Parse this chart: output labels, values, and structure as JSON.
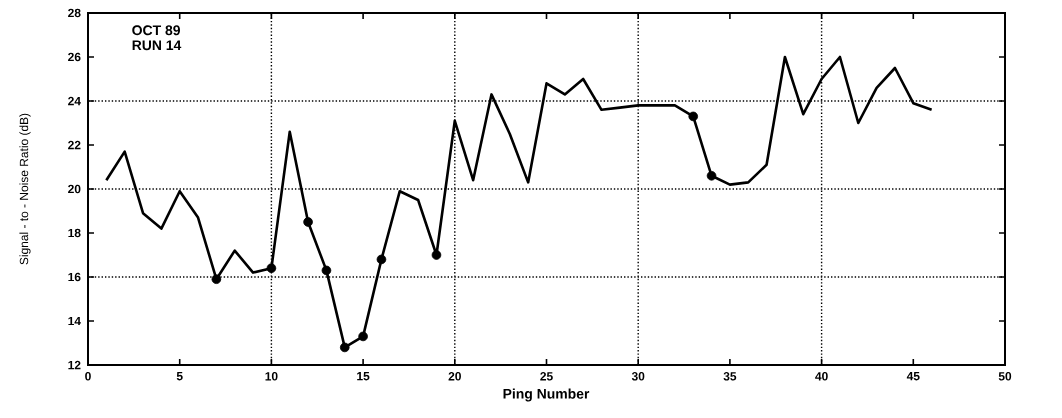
{
  "chart_data": {
    "type": "line",
    "xlabel": "Ping Number",
    "ylabel": "Signal - to - Noise Ratio (dB)",
    "annotations": [
      "OCT  89",
      "RUN  14"
    ],
    "xlim": [
      0,
      50
    ],
    "ylim": [
      12,
      28
    ],
    "xticks": [
      0,
      5,
      10,
      15,
      20,
      25,
      30,
      35,
      40,
      45,
      50
    ],
    "yticks": [
      12,
      14,
      16,
      18,
      20,
      22,
      24,
      26,
      28
    ],
    "line_style": "solid",
    "marker": "none",
    "series": [
      {
        "color": "#000000",
        "x": [
          1,
          2,
          3,
          4,
          5,
          6,
          7,
          8,
          9,
          10,
          11,
          12,
          13,
          14,
          15,
          16,
          17,
          18,
          19,
          20,
          21,
          22,
          23,
          24,
          25,
          26,
          27,
          28,
          29,
          30,
          31,
          32,
          33,
          34,
          35,
          36,
          37,
          38,
          39,
          40,
          41,
          42,
          43,
          44,
          45,
          46
        ],
        "values": [
          20.4,
          21.7,
          18.9,
          18.2,
          19.9,
          18.7,
          15.9,
          17.2,
          16.2,
          16.4,
          22.6,
          18.5,
          16.3,
          12.8,
          13.3,
          16.8,
          19.9,
          19.5,
          17.0,
          23.1,
          20.4,
          24.3,
          22.5,
          20.3,
          24.8,
          24.3,
          25.0,
          23.6,
          23.7,
          23.8,
          23.8,
          23.8,
          23.3,
          20.6,
          20.2,
          20.3,
          21.1,
          26.0,
          23.4,
          25.0,
          26.0,
          23.0,
          24.6,
          25.5,
          23.9,
          23.6
        ]
      },
      {
        "type": "scatter",
        "color": "#000000",
        "marker": "circle",
        "x": [
          7,
          10,
          12,
          13,
          14,
          15,
          16,
          19,
          33,
          34
        ],
        "values": [
          15.9,
          16.4,
          18.5,
          16.3,
          12.8,
          13.3,
          16.8,
          17.0,
          23.3,
          20.6
        ]
      }
    ],
    "ref_lines": [
      {
        "axis": "x",
        "value": 10,
        "line_style": "dotted"
      },
      {
        "axis": "x",
        "value": 20,
        "line_style": "dotted"
      },
      {
        "axis": "x",
        "value": 30,
        "line_style": "dotted"
      },
      {
        "axis": "x",
        "value": 40,
        "line_style": "dotted"
      },
      {
        "axis": "y",
        "value": 16,
        "line_style": "dotted"
      },
      {
        "axis": "y",
        "value": 20,
        "line_style": "dotted"
      },
      {
        "axis": "y",
        "value": 24,
        "line_style": "dotted"
      }
    ]
  }
}
